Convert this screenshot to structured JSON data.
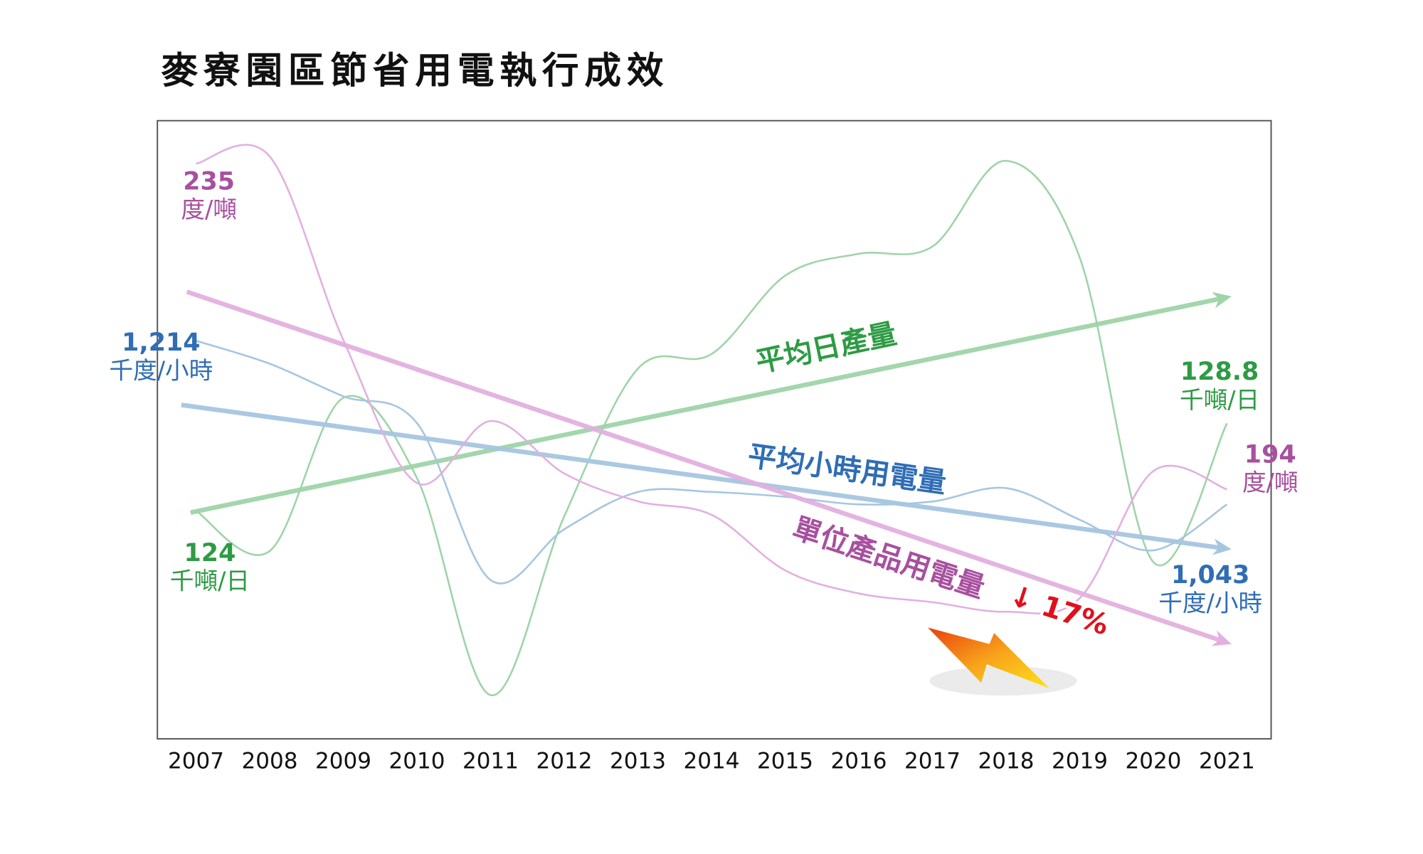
{
  "chart_data": {
    "type": "line",
    "title": "麥寮園區節省用電執行成效",
    "x": [
      2007,
      2008,
      2009,
      2010,
      2011,
      2012,
      2013,
      2014,
      2015,
      2016,
      2017,
      2018,
      2019,
      2020,
      2021
    ],
    "xlim": [
      2006.475,
      2021.6
    ],
    "xticks": [
      2007,
      2008,
      2009,
      2010,
      2011,
      2012,
      2013,
      2014,
      2015,
      2016,
      2017,
      2018,
      2019,
      2020,
      2021
    ],
    "series": [
      {
        "name": "平均日產量",
        "color": "#2e9b44",
        "line_color": "#9fd4a8",
        "unit": "千噸/日",
        "ylim": [
          111.5,
          145.4
        ],
        "values": [
          124,
          121.8,
          130.2,
          125.8,
          113.9,
          123.7,
          131.8,
          132.6,
          136.9,
          138.1,
          138.5,
          143.2,
          137.9,
          121.2,
          128.8
        ],
        "value_labels": [
          "124",
          null,
          null,
          null,
          null,
          null,
          null,
          null,
          null,
          null,
          null,
          null,
          null,
          null,
          "128.8"
        ]
      },
      {
        "name": "平均小時用電量",
        "color": "#2f6db5",
        "line_color": "#a6c6e0",
        "unit": "千度/小時",
        "ylim": [
          798,
          1444
        ],
        "values": [
          1214,
          1190,
          1156,
          1128,
          964,
          1017,
          1056,
          1056,
          1051,
          1043,
          1046,
          1060,
          1027,
          995,
          1043
        ],
        "value_labels": [
          "1,214",
          null,
          null,
          null,
          null,
          null,
          null,
          null,
          null,
          null,
          null,
          null,
          null,
          null,
          "1,043"
        ]
      },
      {
        "name": "單位產品用電量",
        "color": "#a8509f",
        "line_color": "#e2b0e0",
        "unit": "度/噸",
        "ylim": [
          162.6,
          240.4
        ],
        "values": [
          235,
          235.9,
          212.8,
          194.8,
          202.6,
          196.0,
          192.5,
          190.8,
          183.8,
          180.9,
          179.8,
          178.6,
          180.3,
          196.3,
          194
        ],
        "value_labels": [
          "235",
          null,
          null,
          null,
          null,
          null,
          null,
          null,
          null,
          null,
          null,
          null,
          null,
          null,
          "194"
        ],
        "change_label": "↓ 17%",
        "change_color": "#e0101c"
      }
    ]
  }
}
